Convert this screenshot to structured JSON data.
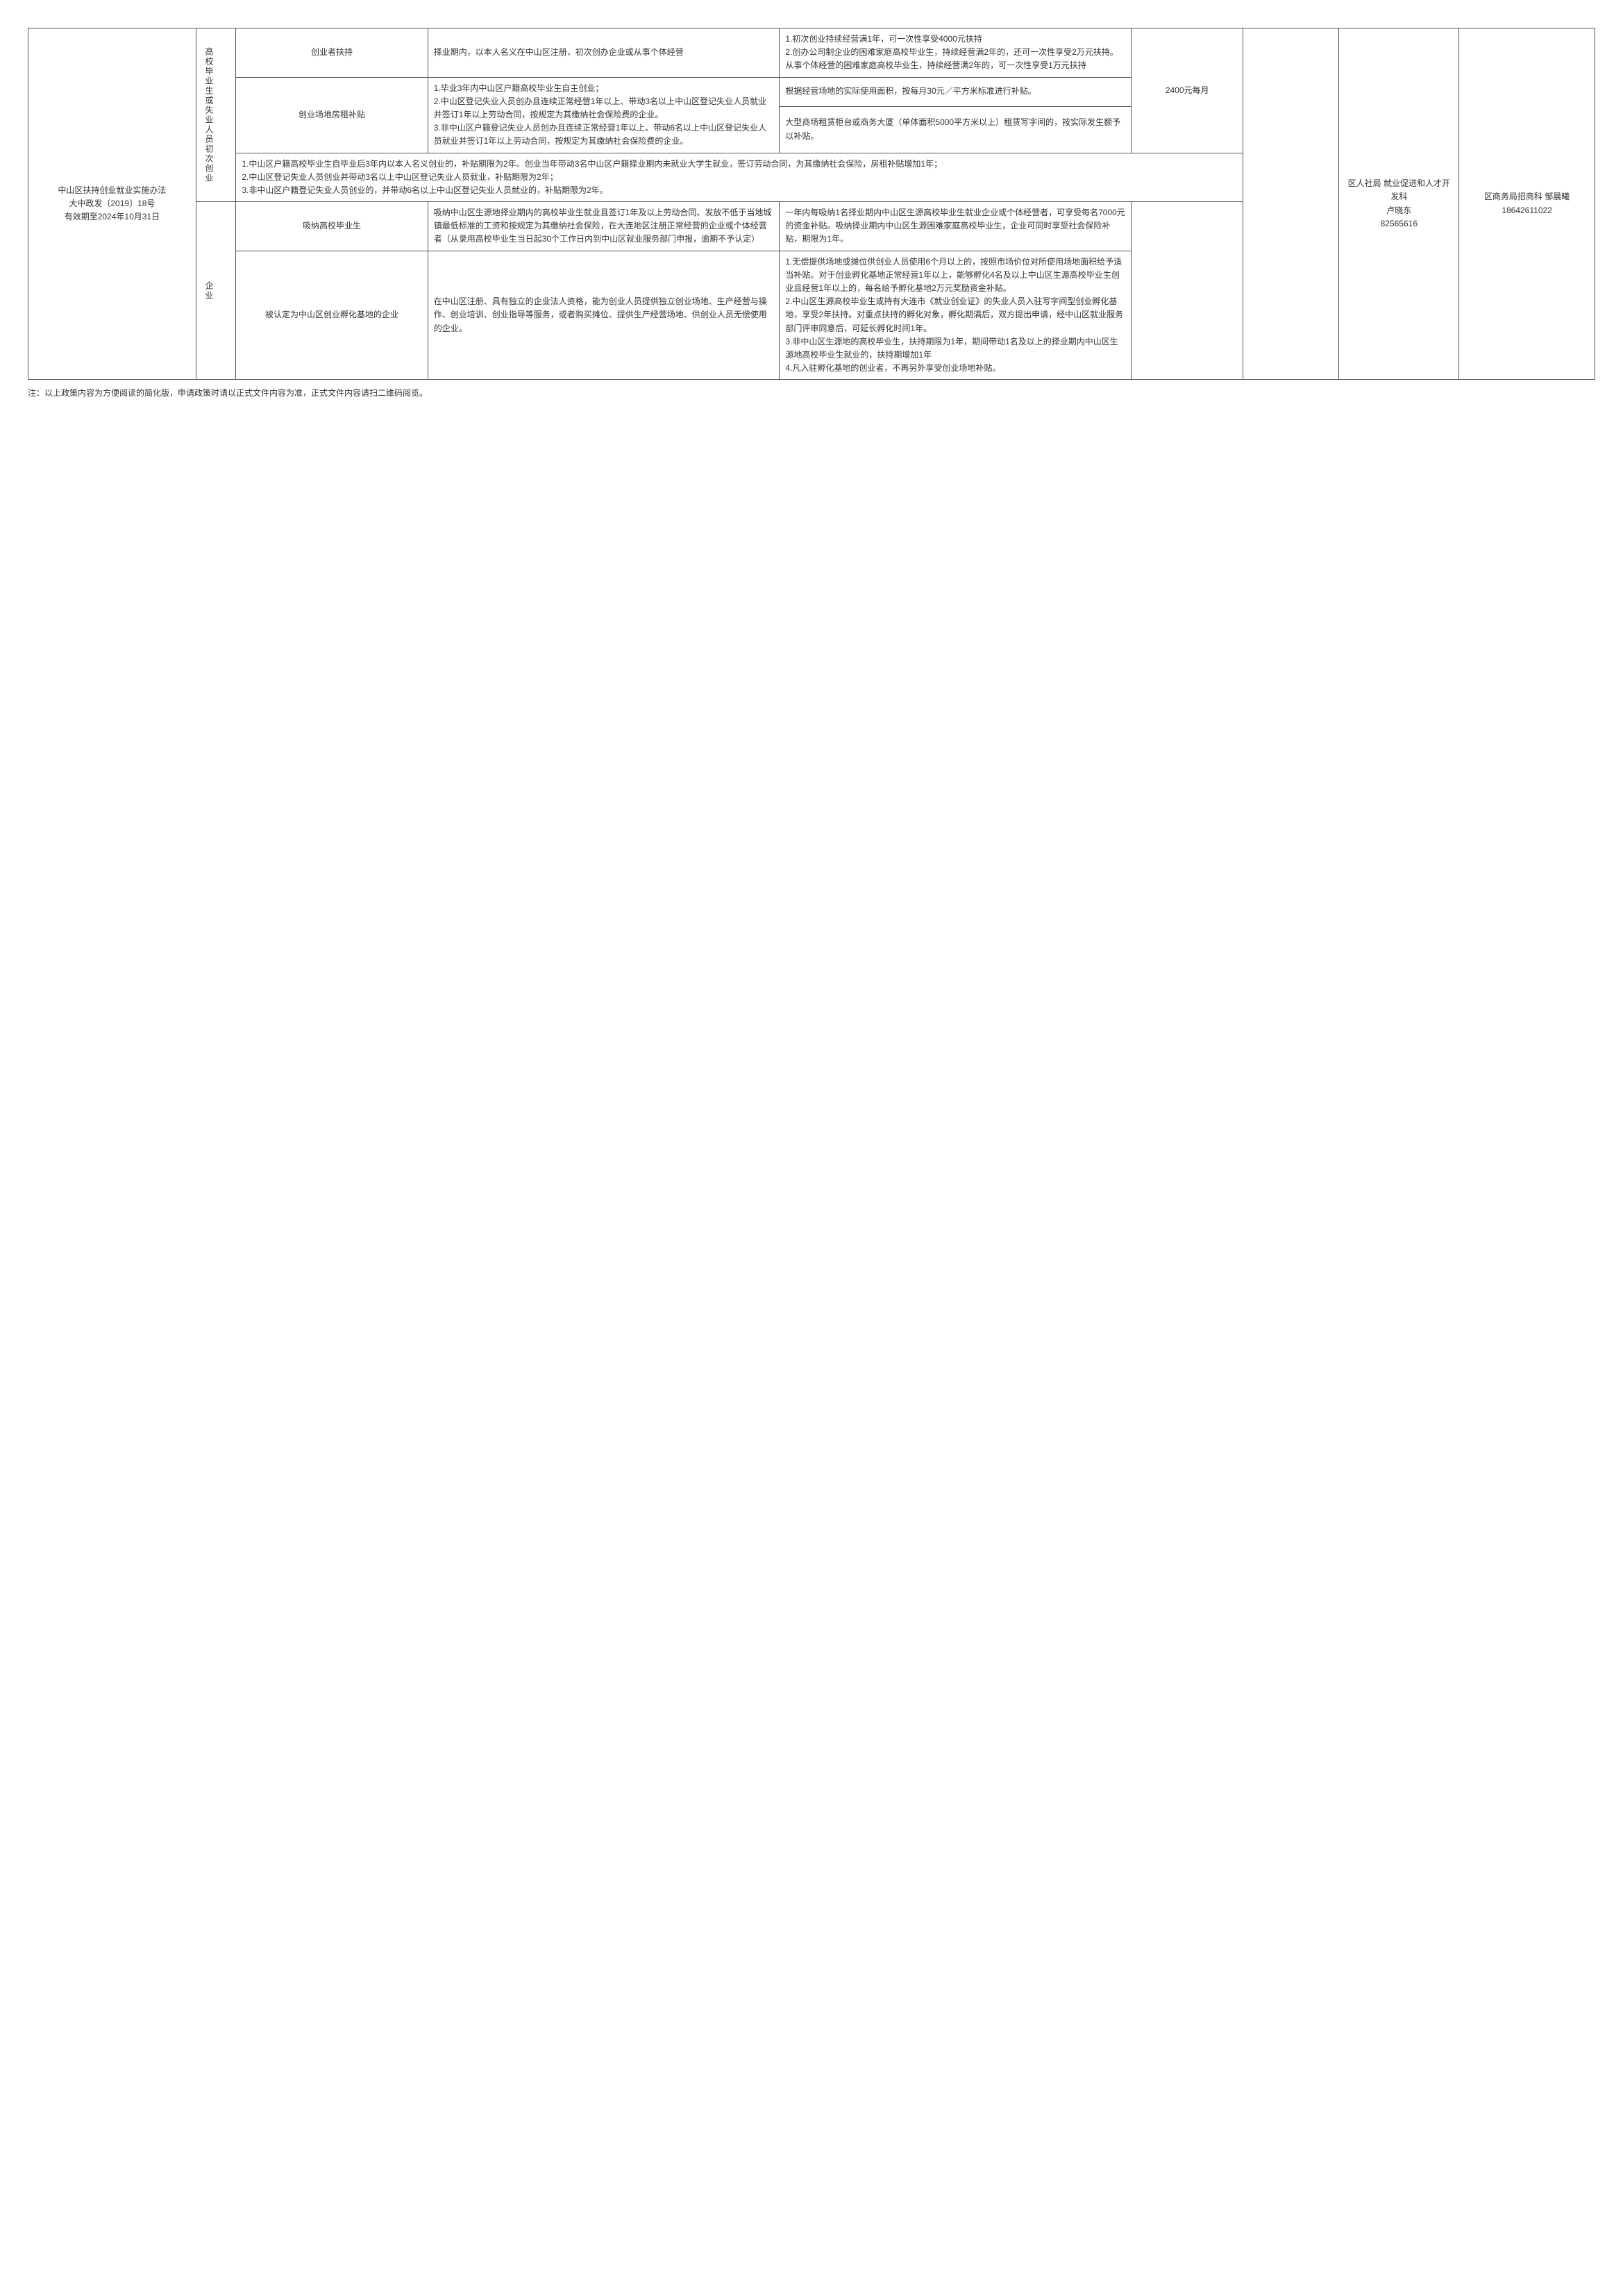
{
  "policy": {
    "title_line1": "中山区扶持创业就业实施办法",
    "title_line2": "大中政发〔2019〕18号",
    "title_line3": "有效期至2024年10月31日"
  },
  "cat_group1": "高校毕业生或失业人员初次创业",
  "cat_group2": "企业",
  "rows": {
    "r1": {
      "name": "创业者扶持",
      "desc": "择业期内，以本人名义在中山区注册，初次创办企业或从事个体经营",
      "detail": "1.初次创业持续经营满1年，可一次性享受4000元扶持\n2.创办公司制企业的困难家庭高校毕业生，持续经营满2年的，还可一次性享受2万元扶持。从事个体经营的困难家庭高校毕业生，持续经营满2年的，可一次性享受1万元扶持"
    },
    "r2": {
      "name": "创业场地房租补贴",
      "desc": "1.毕业3年内中山区户籍高校毕业生自主创业；\n2.中山区登记失业人员创办且连续正常经营1年以上、带动3名以上中山区登记失业人员就业并签订1年以上劳动合同，按规定为其缴纳社会保险费的企业。\n3.非中山区户籍登记失业人员创办且连续正常经营1年以上、带动6名以上中山区登记失业人员就业并签订1年以上劳动合同，按规定为其缴纳社会保险费的企业。",
      "detail_a": "根据经营场地的实际使用面积，按每月30元／平方米标准进行补贴。",
      "detail_b": "大型商场租赁柜台或商务大厦（单体面积5000平方米以上）租赁写字间的，按实际发生额予以补贴。"
    },
    "r3": {
      "note": "1.中山区户籍高校毕业生自毕业后3年内以本人名义创业的，补贴期限为2年。创业当年带动3名中山区户籍择业期内未就业大学生就业，签订劳动合同，为其缴纳社会保险，房租补贴增加1年；\n2.中山区登记失业人员创业并带动3名以上中山区登记失业人员就业，补贴期限为2年；\n3.非中山区户籍登记失业人员创业的，并带动6名以上中山区登记失业人员就业的，补贴期限为2年。"
    },
    "r4": {
      "name": "吸纳高校毕业生",
      "desc": "吸纳中山区生源地择业期内的高校毕业生就业且签订1年及以上劳动合同、发放不低于当地城镇最低标准的工资和按规定为其缴纳社会保险，在大连地区注册正常经营的企业或个体经营者（从录用高校毕业生当日起30个工作日内到中山区就业服务部门申报，逾期不予认定）",
      "detail": "一年内每吸纳1名择业期内中山区生源高校毕业生就业企业或个体经营者，可享受每名7000元的资金补贴。吸纳择业期内中山区生源困难家庭高校毕业生，企业可同时享受社会保险补贴，期限为1年。"
    },
    "r5": {
      "name": "被认定为中山区创业孵化基地的企业",
      "desc": "在中山区注册、具有独立的企业法人资格，能为创业人员提供独立创业场地、生产经营与操作、创业培训、创业指导等服务，或者购买摊位、提供生产经营场地、供创业人员无偿使用的企业。",
      "detail": "1.无偿提供场地或摊位供创业人员使用6个月以上的，按照市场价位对所使用场地面积给予适当补贴。对于创业孵化基地正常经营1年以上，能够孵化4名及以上中山区生源高校毕业生创业且经营1年以上的，每名给予孵化基地2万元奖励资金补贴。\n2.中山区生源高校毕业生或持有大连市《就业创业证》的失业人员入驻写字间型创业孵化基地，享受2年扶持。对重点扶持的孵化对象，孵化期满后，双方提出申请，经中山区就业服务部门评审同意后，可延长孵化时间1年。\n3.非中山区生源地的高校毕业生，扶持期限为1年，期间带动1名及以上的择业期内中山区生源地高校毕业生就业的，扶持期增加1年\n4.凡入驻孵化基地的创业者，不再另外享受创业场地补贴。"
    }
  },
  "amount": "2400元每月",
  "dept1": {
    "line1": "区人社局 就业促进和人才开发科",
    "line2": "卢晓东",
    "line3": "82565616"
  },
  "dept2": {
    "line1": "区商务局招商科 邹晨曦",
    "line2": "18642611022"
  },
  "footnote": "注：以上政策内容为方便阅读的简化版，申请政策时请以正式文件内容为准，正式文件内容请扫二维码阅览。"
}
